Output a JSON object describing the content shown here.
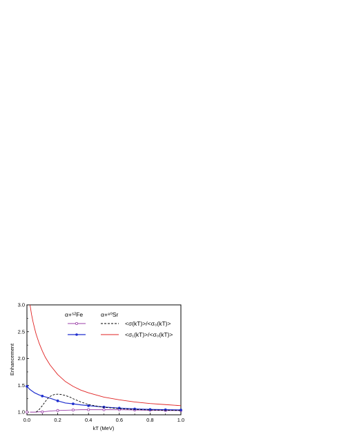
{
  "chart_data": {
    "type": "line",
    "xlabel": "kT (MeV)",
    "ylabel": "Enhancement",
    "xlim": [
      0.0,
      1.0
    ],
    "ylim": [
      0.95,
      3.0
    ],
    "x_ticks": [
      "0.0",
      "0.2",
      "0.4",
      "0.6",
      "0.8",
      "1.0"
    ],
    "y_ticks": [
      "1.0",
      "1.5",
      "2.0",
      "2.5",
      "3.0"
    ],
    "legend": {
      "col1_header": "α+⁵²Fe",
      "col2_header": "α+⁸⁰Sr",
      "row1_label": "<σ(kT)>/<σ₀(kT)>",
      "row2_label": "<σ₁(kT)>/<σ₀(kT)>"
    },
    "series": [
      {
        "key": "fe52_sigma",
        "color": "#9b3fa8",
        "style": "solid-open-markers",
        "x": [
          0.02,
          0.05,
          0.08,
          0.12,
          0.15,
          0.2,
          0.25,
          0.3,
          0.35,
          0.4,
          0.5,
          0.6,
          0.7,
          0.8,
          0.9,
          1.0
        ],
        "y": [
          1.0,
          1.0,
          1.005,
          1.01,
          1.02,
          1.03,
          1.035,
          1.04,
          1.045,
          1.045,
          1.045,
          1.045,
          1.04,
          1.035,
          1.03,
          1.03
        ],
        "markers_x": [
          0.0,
          0.1,
          0.2,
          0.3,
          0.4,
          0.5,
          0.6,
          0.7,
          0.8,
          0.9,
          1.0
        ],
        "markers_y": [
          1.0,
          1.005,
          1.03,
          1.04,
          1.045,
          1.045,
          1.045,
          1.04,
          1.035,
          1.03,
          1.03
        ]
      },
      {
        "key": "fe52_sigma1",
        "color": "#1f2fcf",
        "style": "solid-filled-markers",
        "x": [
          0.0,
          0.02,
          0.05,
          0.08,
          0.1,
          0.15,
          0.2,
          0.25,
          0.3,
          0.35,
          0.4,
          0.5,
          0.6,
          0.7,
          0.8,
          0.9,
          1.0
        ],
        "y": [
          1.48,
          1.42,
          1.36,
          1.32,
          1.3,
          1.26,
          1.21,
          1.17,
          1.155,
          1.135,
          1.12,
          1.095,
          1.075,
          1.06,
          1.05,
          1.045,
          1.04
        ],
        "markers_x": [
          0.0,
          0.1,
          0.2,
          0.3,
          0.4,
          0.5,
          0.6,
          0.7,
          0.8,
          0.9,
          1.0
        ],
        "markers_y": [
          1.48,
          1.3,
          1.21,
          1.155,
          1.12,
          1.095,
          1.075,
          1.06,
          1.05,
          1.045,
          1.04
        ]
      },
      {
        "key": "sr80_sigma",
        "color": "#000000",
        "style": "dashed",
        "x": [
          0.06,
          0.08,
          0.1,
          0.12,
          0.14,
          0.16,
          0.18,
          0.2,
          0.22,
          0.25,
          0.28,
          0.3,
          0.35,
          0.4,
          0.5,
          0.6,
          0.7,
          0.8,
          0.9,
          1.0
        ],
        "y": [
          1.0,
          1.05,
          1.12,
          1.2,
          1.27,
          1.31,
          1.33,
          1.335,
          1.33,
          1.31,
          1.28,
          1.25,
          1.19,
          1.14,
          1.09,
          1.065,
          1.05,
          1.04,
          1.035,
          1.03
        ]
      },
      {
        "key": "sr80_sigma1",
        "color": "#e02020",
        "style": "solid",
        "x": [
          0.02,
          0.03,
          0.04,
          0.05,
          0.06,
          0.08,
          0.1,
          0.12,
          0.15,
          0.2,
          0.25,
          0.3,
          0.35,
          0.4,
          0.5,
          0.6,
          0.7,
          0.8,
          0.9,
          1.0
        ],
        "y": [
          3.0,
          2.82,
          2.68,
          2.56,
          2.45,
          2.28,
          2.14,
          2.02,
          1.88,
          1.7,
          1.57,
          1.48,
          1.41,
          1.36,
          1.28,
          1.23,
          1.19,
          1.16,
          1.14,
          1.12
        ]
      }
    ]
  }
}
